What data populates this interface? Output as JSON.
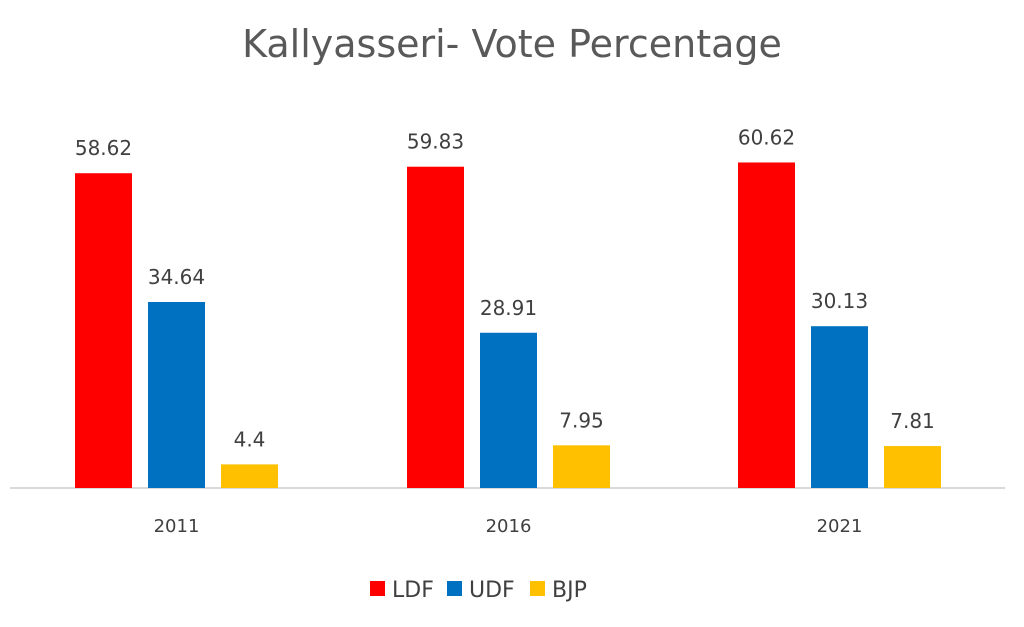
{
  "chart_data": {
    "type": "bar",
    "title": "Kallyasseri- Vote Percentage",
    "categories": [
      "2011",
      "2016",
      "2021"
    ],
    "series": [
      {
        "name": "LDF",
        "color": "#FF0000",
        "values": [
          58.62,
          59.83,
          60.62
        ]
      },
      {
        "name": "UDF",
        "color": "#0070C0",
        "values": [
          34.64,
          28.91,
          30.13
        ]
      },
      {
        "name": "BJP",
        "color": "#FFC000",
        "values": [
          4.4,
          7.95,
          7.81
        ]
      }
    ],
    "data_labels": [
      [
        "58.62",
        "59.83",
        "60.62"
      ],
      [
        "34.64",
        "28.91",
        "30.13"
      ],
      [
        "4.4",
        "7.95",
        "7.81"
      ]
    ],
    "xlabel": "",
    "ylabel": "",
    "ylim": [
      0,
      65
    ],
    "grid": false,
    "legend": "bottom"
  }
}
